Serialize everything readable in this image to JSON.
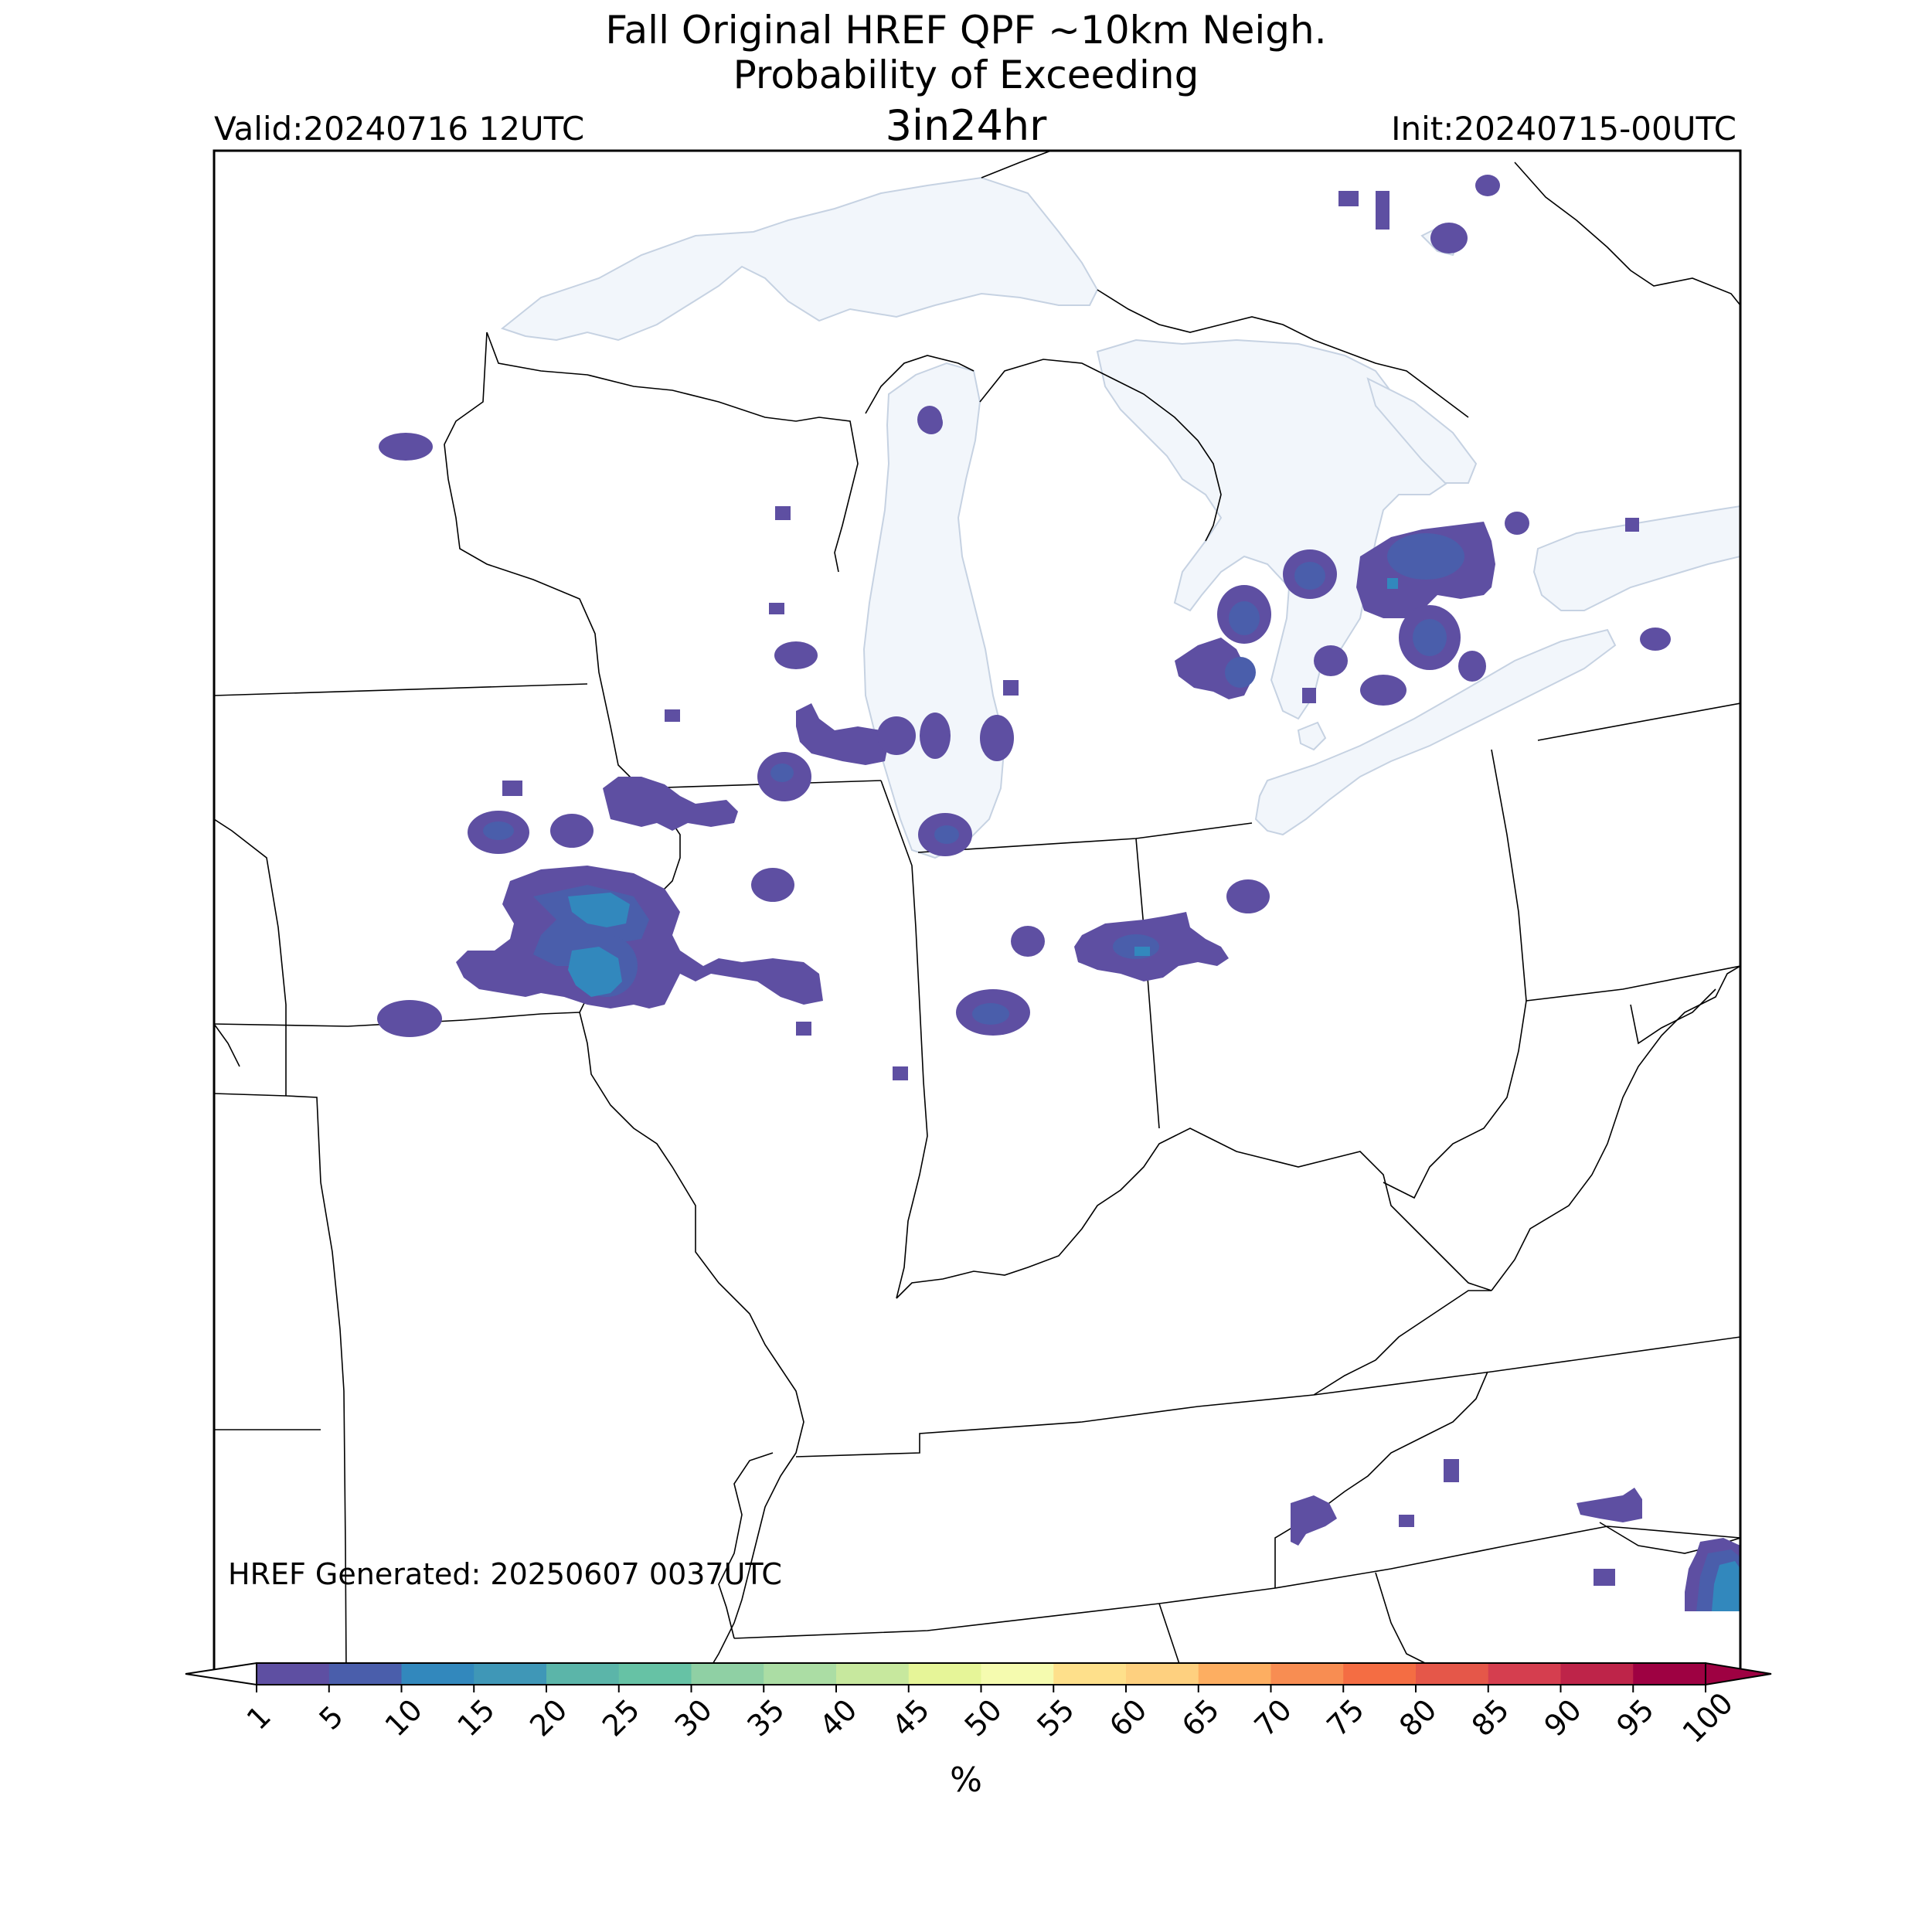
{
  "title": {
    "line1": "Fall Original HREF QPF ~10km Neigh.",
    "line2": "Probability of Exceeding",
    "line3": "3in24hr"
  },
  "valid": "Valid:20240716 12UTC",
  "init": "Init:20240715-00UTC",
  "generated": "HREF Generated: 20250607 0037UTC",
  "colorbar": {
    "label": "%",
    "ticks": [
      "1",
      "5",
      "10",
      "15",
      "20",
      "25",
      "30",
      "35",
      "40",
      "45",
      "50",
      "55",
      "60",
      "65",
      "70",
      "75",
      "80",
      "85",
      "90",
      "95",
      "100"
    ],
    "colors": [
      "#5e4fa2",
      "#4a5eab",
      "#3288bd",
      "#3f97b7",
      "#5bb5a9",
      "#66c2a5",
      "#8fd0a4",
      "#abdda4",
      "#c7e89e",
      "#e6f598",
      "#f5fbaf",
      "#fee08b",
      "#fed07f",
      "#fdae61",
      "#f88d52",
      "#f46d43",
      "#e55749",
      "#d53e4f",
      "#be2449",
      "#9e0142"
    ],
    "under_color": "#ffffff",
    "over_color": "#9e0142"
  },
  "colors": {
    "lake_fill": "#f2f6fb",
    "lake_edge": "#c6d2e2",
    "land": "#ffffff",
    "border": "#000000",
    "prob_low": "#5e4fa2",
    "prob_mid": "#4a5eab",
    "prob_high": "#3288bd"
  }
}
